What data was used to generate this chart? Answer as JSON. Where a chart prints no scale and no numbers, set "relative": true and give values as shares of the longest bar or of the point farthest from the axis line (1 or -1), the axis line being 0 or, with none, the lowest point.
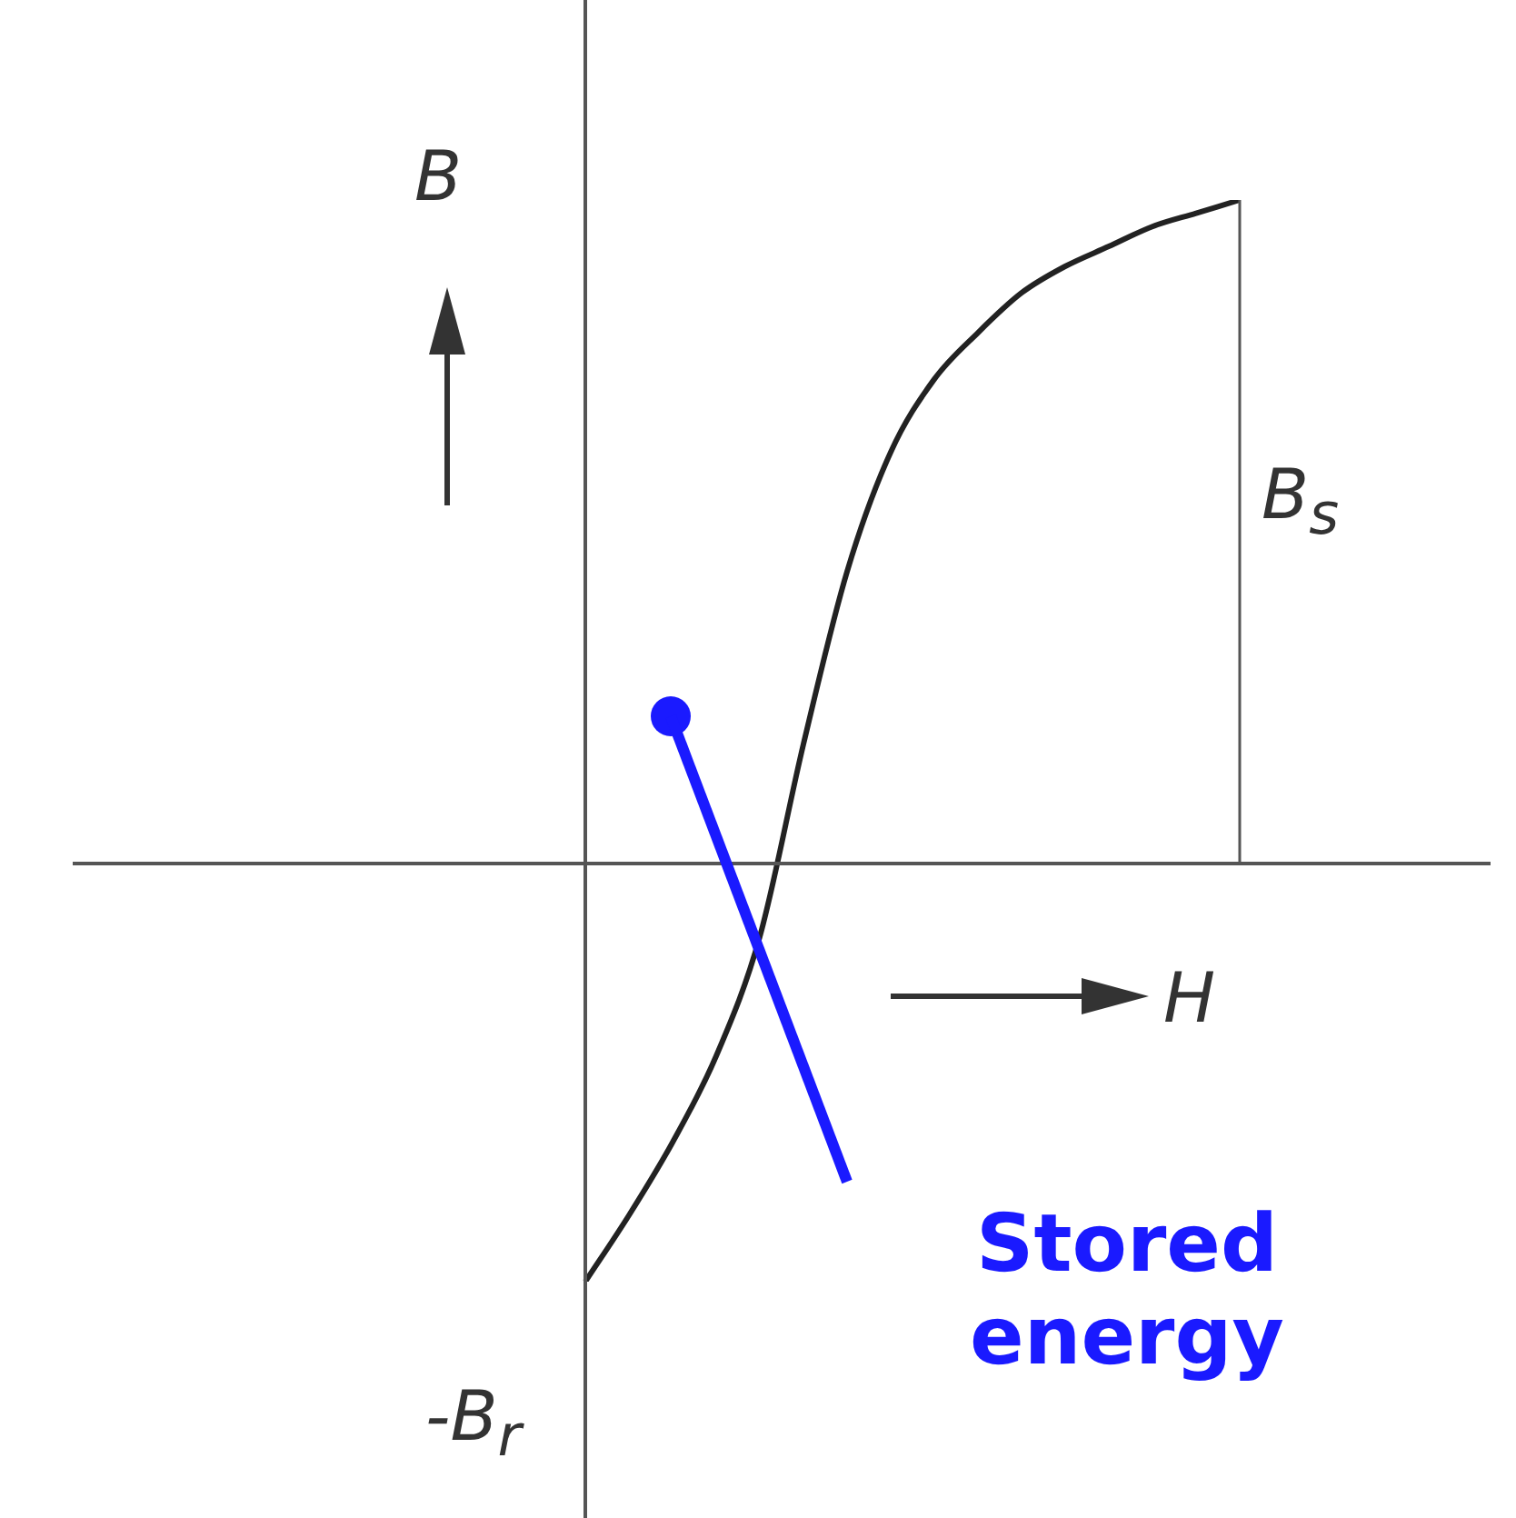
{
  "chart_data": {
    "type": "line",
    "xlabel": "H",
    "ylabel": "B",
    "categories": [
      null,
      null,
      null,
      null,
      null,
      null,
      null,
      null,
      null,
      null,
      null,
      null,
      null,
      null,
      null,
      null
    ],
    "values": [
      -0.63,
      -0.53,
      -0.42,
      -0.29,
      -0.11,
      0.18,
      0.44,
      0.62,
      0.73,
      0.8,
      0.86,
      0.9,
      0.93,
      0.96,
      0.98,
      1
    ],
    "color": "#222222",
    "relative": true,
    "tick_labels": false,
    "legend": false,
    "marker": "none",
    "line_style": "solid",
    "annotations": [
      "B$_{s}$",
      "-B$_{r}$",
      "Stored energy"
    ]
  }
}
